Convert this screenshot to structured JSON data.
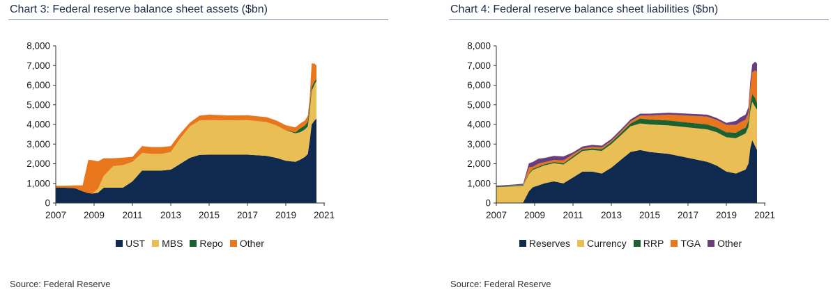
{
  "chart_data": [
    {
      "type": "area",
      "stacked": true,
      "title": "Chart 3: Federal reserve balance sheet assets ($bn)",
      "xlabel": "",
      "ylabel": "",
      "x_ticks": [
        "2007",
        "2009",
        "2011",
        "2013",
        "2015",
        "2017",
        "2019",
        "2021"
      ],
      "y_ticks": [
        "0",
        "1,000",
        "2,000",
        "3,000",
        "4,000",
        "5,000",
        "6,000",
        "7,000",
        "8,000"
      ],
      "xlim": [
        2007,
        2021
      ],
      "ylim": [
        0,
        8000
      ],
      "grid": false,
      "legend_position": "bottom",
      "x": [
        2007.0,
        2007.5,
        2008.0,
        2008.4,
        2008.7,
        2008.9,
        2009.2,
        2009.5,
        2010.0,
        2010.5,
        2011.0,
        2011.5,
        2012.0,
        2012.5,
        2013.0,
        2013.5,
        2014.0,
        2014.5,
        2015.0,
        2016.0,
        2017.0,
        2018.0,
        2018.5,
        2019.0,
        2019.5,
        2019.75,
        2020.0,
        2020.15,
        2020.25,
        2020.35,
        2020.5,
        2020.6
      ],
      "series": [
        {
          "name": "UST",
          "color": "#0f2a4e",
          "values": [
            780,
            780,
            750,
            600,
            500,
            480,
            520,
            780,
            780,
            780,
            1100,
            1650,
            1650,
            1650,
            1700,
            2000,
            2300,
            2450,
            2460,
            2460,
            2460,
            2400,
            2300,
            2150,
            2100,
            2200,
            2350,
            2500,
            3200,
            4000,
            4200,
            4300
          ]
        },
        {
          "name": "MBS",
          "color": "#e8be55",
          "values": [
            0,
            0,
            0,
            0,
            0,
            0,
            200,
            600,
            1100,
            1150,
            1000,
            900,
            850,
            850,
            900,
            1300,
            1600,
            1750,
            1760,
            1750,
            1760,
            1720,
            1650,
            1550,
            1450,
            1400,
            1400,
            1400,
            1500,
            1700,
            1850,
            1900
          ]
        },
        {
          "name": "Repo",
          "color": "#1e6130",
          "values": [
            0,
            0,
            0,
            0,
            0,
            0,
            0,
            0,
            0,
            0,
            0,
            0,
            0,
            0,
            0,
            0,
            0,
            0,
            0,
            0,
            0,
            0,
            0,
            10,
            50,
            200,
            200,
            250,
            300,
            200,
            150,
            100
          ]
        },
        {
          "name": "Other",
          "color": "#e8761c",
          "values": [
            100,
            100,
            150,
            300,
            1700,
            1700,
            1400,
            900,
            400,
            380,
            250,
            350,
            350,
            350,
            300,
            250,
            200,
            250,
            280,
            250,
            250,
            250,
            250,
            250,
            250,
            250,
            250,
            300,
            400,
            1200,
            900,
            700
          ]
        }
      ]
    },
    {
      "type": "area",
      "stacked": true,
      "title": "Chart 4: Federal reserve balance sheet liabilities ($bn)",
      "xlabel": "",
      "ylabel": "",
      "x_ticks": [
        "2007",
        "2009",
        "2011",
        "2013",
        "2015",
        "2017",
        "2019",
        "2021"
      ],
      "y_ticks": [
        "0",
        "1,000",
        "2,000",
        "3,000",
        "4,000",
        "5,000",
        "6,000",
        "7,000",
        "8,000"
      ],
      "xlim": [
        2007,
        2021
      ],
      "ylim": [
        0,
        8000
      ],
      "grid": false,
      "legend_position": "bottom",
      "x": [
        2007.0,
        2007.5,
        2008.0,
        2008.4,
        2008.7,
        2008.9,
        2009.2,
        2009.5,
        2010.0,
        2010.5,
        2011.0,
        2011.5,
        2012.0,
        2012.5,
        2013.0,
        2013.5,
        2014.0,
        2014.5,
        2015.0,
        2016.0,
        2017.0,
        2018.0,
        2018.5,
        2019.0,
        2019.5,
        2019.75,
        2020.0,
        2020.15,
        2020.25,
        2020.35,
        2020.5,
        2020.6
      ],
      "series": [
        {
          "name": "Reserves",
          "color": "#0f2a4e",
          "values": [
            10,
            10,
            20,
            30,
            600,
            800,
            900,
            1000,
            1100,
            1000,
            1300,
            1600,
            1600,
            1500,
            1800,
            2200,
            2600,
            2700,
            2600,
            2500,
            2300,
            2100,
            1900,
            1600,
            1500,
            1600,
            1700,
            2000,
            2800,
            3200,
            2900,
            2700
          ]
        },
        {
          "name": "Currency",
          "color": "#e8be55",
          "values": [
            800,
            820,
            840,
            850,
            870,
            880,
            900,
            910,
            930,
            960,
            1000,
            1050,
            1100,
            1150,
            1200,
            1250,
            1300,
            1350,
            1400,
            1450,
            1550,
            1650,
            1700,
            1750,
            1800,
            1820,
            1840,
            1870,
            1900,
            1950,
            2000,
            2050
          ]
        },
        {
          "name": "RRP",
          "color": "#1e6130",
          "values": [
            40,
            40,
            40,
            40,
            50,
            60,
            60,
            60,
            60,
            60,
            80,
            80,
            80,
            90,
            100,
            120,
            150,
            250,
            250,
            250,
            250,
            250,
            250,
            250,
            280,
            300,
            300,
            300,
            350,
            400,
            450,
            350
          ]
        },
        {
          "name": "TGA",
          "color": "#e8761c",
          "values": [
            10,
            10,
            10,
            10,
            300,
            100,
            150,
            100,
            100,
            150,
            100,
            50,
            80,
            80,
            60,
            80,
            100,
            150,
            200,
            300,
            350,
            400,
            380,
            380,
            400,
            400,
            400,
            400,
            800,
            1100,
            1400,
            1600
          ]
        },
        {
          "name": "Other",
          "color": "#6a3d7d",
          "values": [
            30,
            30,
            40,
            50,
            200,
            250,
            250,
            220,
            210,
            200,
            100,
            100,
            100,
            100,
            100,
            100,
            100,
            100,
            100,
            100,
            100,
            100,
            100,
            100,
            200,
            250,
            260,
            300,
            350,
            400,
            450,
            400
          ]
        }
      ]
    }
  ],
  "panels": [
    {
      "title": "Chart 3: Federal reserve balance sheet assets ($bn)",
      "source": "Source: Federal Reserve",
      "legend": [
        {
          "label": "UST",
          "color": "#0f2a4e"
        },
        {
          "label": "MBS",
          "color": "#e8be55"
        },
        {
          "label": "Repo",
          "color": "#1e6130"
        },
        {
          "label": "Other",
          "color": "#e8761c"
        }
      ]
    },
    {
      "title": "Chart 4: Federal reserve balance sheet liabilities ($bn)",
      "source": "Source: Federal Reserve",
      "legend": [
        {
          "label": "Reserves",
          "color": "#0f2a4e"
        },
        {
          "label": "Currency",
          "color": "#e8be55"
        },
        {
          "label": "RRP",
          "color": "#1e6130"
        },
        {
          "label": "TGA",
          "color": "#e8761c"
        },
        {
          "label": "Other",
          "color": "#6a3d7d"
        }
      ]
    }
  ]
}
